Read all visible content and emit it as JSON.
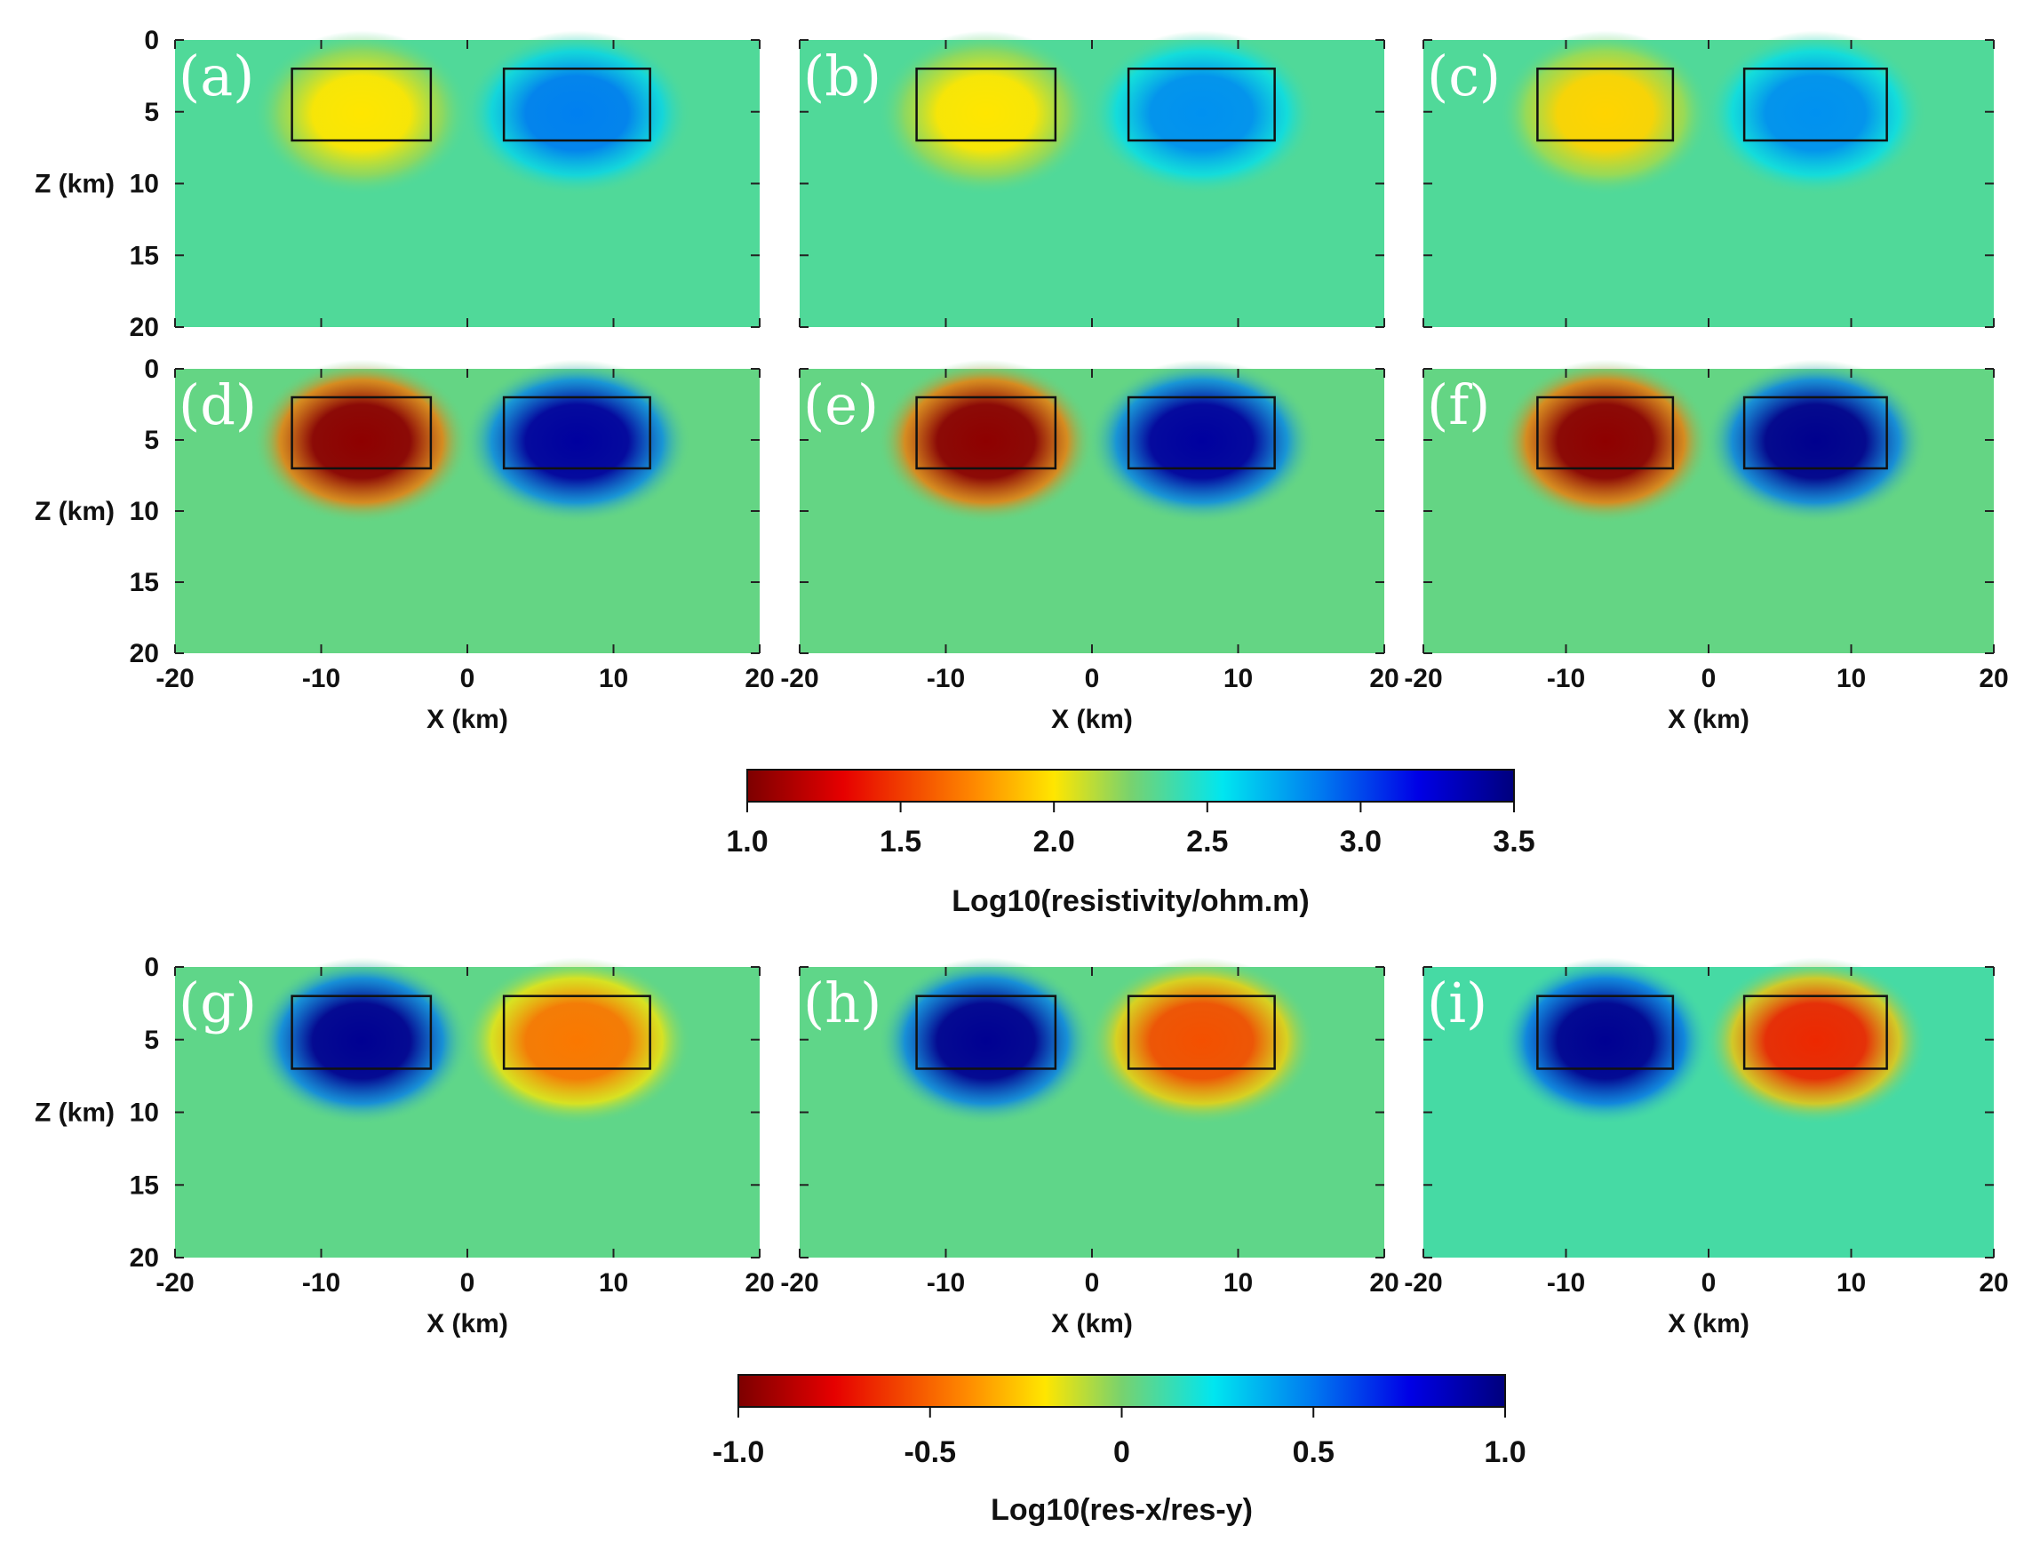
{
  "chart_data": {
    "type": "heatmap",
    "x_axis": {
      "label": "X (km)",
      "range": [
        -20,
        20
      ],
      "ticks": [
        "-20",
        "-10",
        "0",
        "10",
        "20"
      ]
    },
    "z_axis": {
      "label": "Z (km)",
      "range": [
        0,
        20
      ],
      "ticks": [
        "0",
        "5",
        "10",
        "15",
        "20"
      ]
    },
    "target_blocks_km": [
      {
        "x_range": [
          -12,
          -2.5
        ],
        "z_range": [
          2,
          7
        ]
      },
      {
        "x_range": [
          2.5,
          12.5
        ],
        "z_range": [
          2,
          7
        ]
      }
    ],
    "panels": [
      {
        "label": "(a)",
        "row": 0,
        "col": 0,
        "variable": "log10_resistivity",
        "left_anomaly_value": 2.0,
        "right_anomaly_value": 2.85,
        "background": 2.35
      },
      {
        "label": "(b)",
        "row": 0,
        "col": 1,
        "variable": "log10_resistivity",
        "left_anomaly_value": 2.0,
        "right_anomaly_value": 2.8,
        "background": 2.35
      },
      {
        "label": "(c)",
        "row": 0,
        "col": 2,
        "variable": "log10_resistivity",
        "left_anomaly_value": 1.95,
        "right_anomaly_value": 2.8,
        "background": 2.35
      },
      {
        "label": "(d)",
        "row": 1,
        "col": 0,
        "variable": "log10_resistivity",
        "left_anomaly_value": 1.05,
        "right_anomaly_value": 3.4,
        "background": 2.3
      },
      {
        "label": "(e)",
        "row": 1,
        "col": 1,
        "variable": "log10_resistivity",
        "left_anomaly_value": 1.05,
        "right_anomaly_value": 3.4,
        "background": 2.3
      },
      {
        "label": "(f)",
        "row": 1,
        "col": 2,
        "variable": "log10_resistivity",
        "left_anomaly_value": 1.05,
        "right_anomaly_value": 3.45,
        "background": 2.3
      },
      {
        "label": "(g)",
        "row": 2,
        "col": 0,
        "variable": "log10_anisotropy",
        "left_anomaly_value": 0.95,
        "right_anomaly_value": -0.45,
        "background": 0.05
      },
      {
        "label": "(h)",
        "row": 2,
        "col": 1,
        "variable": "log10_anisotropy",
        "left_anomaly_value": 0.95,
        "right_anomaly_value": -0.55,
        "background": 0.05
      },
      {
        "label": "(i)",
        "row": 2,
        "col": 2,
        "variable": "log10_anisotropy",
        "left_anomaly_value": 0.95,
        "right_anomaly_value": -0.65,
        "background": 0.1
      }
    ],
    "colorbars": [
      {
        "title": "Log10(resistivity/ohm.m)",
        "range": [
          1.0,
          3.5
        ],
        "ticks": [
          "1.0",
          "1.5",
          "2.0",
          "2.5",
          "3.0",
          "3.5"
        ],
        "colormap": "jet_reversed"
      },
      {
        "title": "Log10(res-x/res-y)",
        "range": [
          -1.0,
          1.0
        ],
        "ticks": [
          "-1.0",
          "-0.5",
          "0",
          "0.5",
          "1.0"
        ],
        "colormap": "jet_reversed"
      }
    ]
  }
}
